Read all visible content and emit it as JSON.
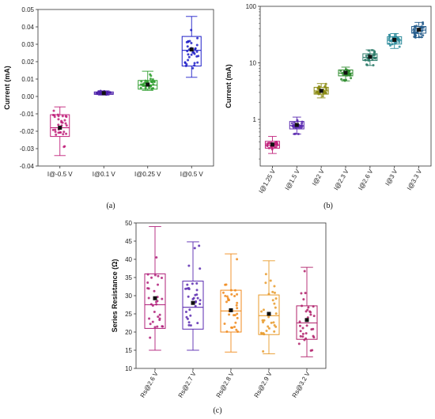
{
  "figure": {
    "captions": [
      "(a)",
      "(b)",
      "(c)"
    ]
  },
  "chart_data": [
    {
      "type": "box",
      "panel": "a",
      "caption": "(a)",
      "ylabel": "Current (mA)",
      "ylim": [
        -0.04,
        0.05
      ],
      "yticks": [
        -0.04,
        -0.03,
        -0.02,
        -0.01,
        0.0,
        0.01,
        0.02,
        0.03,
        0.04,
        0.05
      ],
      "ytick_labels": [
        "-0.04",
        "-0.03",
        "-0.02",
        "-0.01",
        "0.00",
        "0.01",
        "0.02",
        "0.03",
        "0.04",
        "0.05"
      ],
      "yscale": "linear",
      "categories": [
        "I@-0.5 V",
        "I@0.1 V",
        "I@0.25 V",
        "I@0.5 V"
      ],
      "colors": [
        "#c0207a",
        "#4b1fa8",
        "#2e9e2e",
        "#1f1fc8"
      ],
      "boxes": [
        {
          "min": -0.034,
          "q1": -0.023,
          "median": -0.018,
          "mean": -0.018,
          "q3": -0.0105,
          "max": -0.006
        },
        {
          "min": 0.0008,
          "q1": 0.0012,
          "median": 0.0018,
          "mean": 0.0019,
          "q3": 0.0026,
          "max": 0.0032
        },
        {
          "min": 0.0035,
          "q1": 0.0042,
          "median": 0.0065,
          "mean": 0.0068,
          "q3": 0.0092,
          "max": 0.0145
        },
        {
          "min": 0.011,
          "q1": 0.0175,
          "median": 0.0265,
          "mean": 0.027,
          "q3": 0.0345,
          "max": 0.046
        }
      ]
    },
    {
      "type": "box",
      "panel": "b",
      "caption": "(b)",
      "ylabel": "Current (mA)",
      "ylim": [
        0.15,
        100
      ],
      "yticks": [
        1,
        10,
        100
      ],
      "ytick_labels": [
        "1",
        "10",
        "100"
      ],
      "yscale": "log",
      "categories": [
        "I@1.25 V",
        "I@1.5 V",
        "I@2 V",
        "I@2.3 V",
        "I@2.6 V",
        "I@3 V",
        "I@3.3 V"
      ],
      "colors": [
        "#c0207a",
        "#5a2ab0",
        "#8a8a12",
        "#2e8b2e",
        "#2e7d6b",
        "#2a8a9a",
        "#245c8c"
      ],
      "boxes": [
        {
          "min": 0.25,
          "q1": 0.31,
          "median": 0.35,
          "mean": 0.36,
          "q3": 0.41,
          "max": 0.5
        },
        {
          "min": 0.55,
          "q1": 0.68,
          "median": 0.78,
          "mean": 0.8,
          "q3": 0.92,
          "max": 1.1
        },
        {
          "min": 2.4,
          "q1": 2.8,
          "median": 3.2,
          "mean": 3.2,
          "q3": 3.7,
          "max": 4.3
        },
        {
          "min": 4.8,
          "q1": 5.9,
          "median": 6.6,
          "mean": 6.7,
          "q3": 7.5,
          "max": 8.4
        },
        {
          "min": 9.0,
          "q1": 11.0,
          "median": 12.5,
          "mean": 12.8,
          "q3": 14.5,
          "max": 17.0
        },
        {
          "min": 18.0,
          "q1": 21.5,
          "median": 25.0,
          "mean": 25.5,
          "q3": 29.0,
          "max": 33.0
        },
        {
          "min": 28.0,
          "q1": 33.5,
          "median": 38.0,
          "mean": 38.5,
          "q3": 44.0,
          "max": 52.0
        }
      ]
    },
    {
      "type": "box",
      "panel": "c",
      "caption": "(c)",
      "ylabel": "Series Resistance (Ω)",
      "ylim": [
        10,
        50
      ],
      "yticks": [
        10,
        15,
        20,
        25,
        30,
        35,
        40,
        45,
        50
      ],
      "ytick_labels": [
        "10",
        "15",
        "20",
        "25",
        "30",
        "35",
        "40",
        "45",
        "50"
      ],
      "yscale": "linear",
      "categories": [
        "Rs@2.6 V",
        "Rs@2.7 V",
        "Rs@2.8 V",
        "Rs@2.9 V",
        "Rs@3.2 V"
      ],
      "colors": [
        "#b0207a",
        "#5a2ab0",
        "#f08a1c",
        "#e89a2a",
        "#b0206a"
      ],
      "boxes": [
        {
          "min": 15.0,
          "q1": 21.0,
          "median": 27.5,
          "mean": 29.3,
          "q3": 36.0,
          "max": 49.0
        },
        {
          "min": 15.0,
          "q1": 20.8,
          "median": 26.8,
          "mean": 28.0,
          "q3": 34.0,
          "max": 44.8
        },
        {
          "min": 14.5,
          "q1": 20.0,
          "median": 25.8,
          "mean": 26.0,
          "q3": 31.5,
          "max": 41.5
        },
        {
          "min": 14.0,
          "q1": 19.3,
          "median": 24.5,
          "mean": 25.0,
          "q3": 30.2,
          "max": 39.6
        },
        {
          "min": 13.2,
          "q1": 18.0,
          "median": 22.5,
          "mean": 23.3,
          "q3": 27.2,
          "max": 37.8
        }
      ]
    }
  ]
}
